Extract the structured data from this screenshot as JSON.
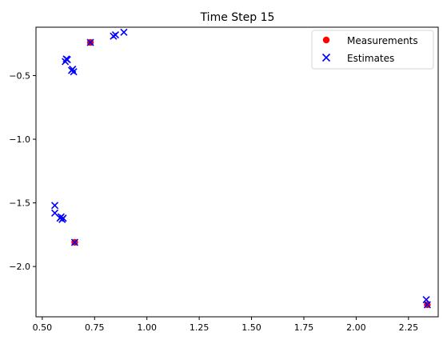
{
  "chart_data": {
    "type": "scatter",
    "title": "Time Step 15",
    "xlabel": "",
    "ylabel": "",
    "xlim": [
      0.47,
      2.392
    ],
    "ylim": [
      -2.395,
      -0.12
    ],
    "xticks": [
      0.5,
      0.75,
      1.0,
      1.25,
      1.5,
      1.75,
      2.0,
      2.25
    ],
    "xtick_labels": [
      "0.50",
      "0.75",
      "1.00",
      "1.25",
      "1.50",
      "1.75",
      "2.00",
      "2.25"
    ],
    "yticks": [
      -0.5,
      -1.0,
      -1.5,
      -2.0
    ],
    "ytick_labels": [
      "−0.5",
      "−1.0",
      "−1.5",
      "−2.0"
    ],
    "grid": false,
    "legend_position": "top-right",
    "series": [
      {
        "name": "Measurements",
        "marker": "circle",
        "color": "#ff0000",
        "points": [
          [
            0.73,
            -0.24
          ],
          [
            0.655,
            -1.81
          ],
          [
            2.34,
            -2.3
          ]
        ]
      },
      {
        "name": "Estimates",
        "marker": "x",
        "color": "#0000ff",
        "points": [
          [
            0.73,
            -0.24
          ],
          [
            0.84,
            -0.19
          ],
          [
            0.85,
            -0.18
          ],
          [
            0.89,
            -0.16
          ],
          [
            0.61,
            -0.39
          ],
          [
            0.615,
            -0.37
          ],
          [
            0.62,
            -0.375
          ],
          [
            0.64,
            -0.46
          ],
          [
            0.645,
            -0.45
          ],
          [
            0.65,
            -0.47
          ],
          [
            0.56,
            -1.52
          ],
          [
            0.56,
            -1.58
          ],
          [
            0.585,
            -1.62
          ],
          [
            0.59,
            -1.61
          ],
          [
            0.595,
            -1.63
          ],
          [
            0.6,
            -1.62
          ],
          [
            0.655,
            -1.81
          ],
          [
            2.335,
            -2.26
          ],
          [
            2.34,
            -2.3
          ]
        ]
      }
    ]
  }
}
